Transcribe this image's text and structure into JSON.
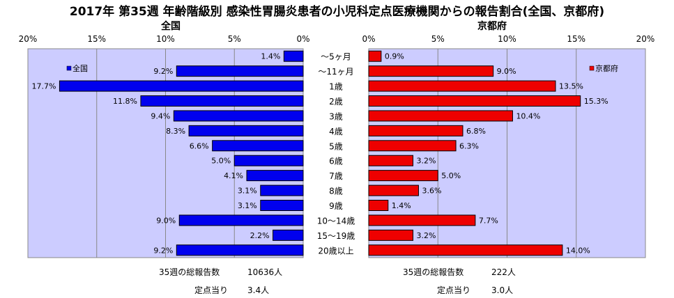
{
  "title": "2017年 第35週 年齢階級別 感染性胃腸炎患者の小児科定点医療機関からの報告割合(全国、京都府)",
  "colors": {
    "national": "#0000ee",
    "kyoto": "#ee0000",
    "plot_bg": "#ccccff"
  },
  "chart_data": [
    {
      "type": "bar",
      "orientation": "horizontal",
      "direction": "right-to-left",
      "title": "全国",
      "legend": {
        "label": "全国",
        "placement": "top-left"
      },
      "categories": [
        "～5ヶ月",
        "～11ヶ月",
        "1歳",
        "2歳",
        "3歳",
        "4歳",
        "5歳",
        "6歳",
        "7歳",
        "8歳",
        "9歳",
        "10～14歳",
        "15～19歳",
        "20歳以上"
      ],
      "values": [
        1.4,
        9.2,
        17.7,
        11.8,
        9.4,
        8.3,
        6.6,
        5.0,
        4.1,
        3.1,
        3.1,
        9.0,
        2.2,
        9.2
      ],
      "value_labels": [
        "1.4%",
        "9.2%",
        "17.7%",
        "11.8%",
        "9.4%",
        "8.3%",
        "6.6%",
        "5.0%",
        "4.1%",
        "3.1%",
        "3.1%",
        "9.0%",
        "2.2%",
        "9.2%"
      ],
      "xlim": [
        0,
        20
      ],
      "ticks": [
        "20%",
        "15%",
        "10%",
        "5%",
        "0%"
      ],
      "grid": true
    },
    {
      "type": "bar",
      "orientation": "horizontal",
      "direction": "left-to-right",
      "title": "京都府",
      "legend": {
        "label": "京都府",
        "placement": "top-right"
      },
      "categories": [
        "～5ヶ月",
        "～11ヶ月",
        "1歳",
        "2歳",
        "3歳",
        "4歳",
        "5歳",
        "6歳",
        "7歳",
        "8歳",
        "9歳",
        "10～14歳",
        "15～19歳",
        "20歳以上"
      ],
      "values": [
        0.9,
        9.0,
        13.5,
        15.3,
        10.4,
        6.8,
        6.3,
        3.2,
        5.0,
        3.6,
        1.4,
        7.7,
        3.2,
        14.0
      ],
      "value_labels": [
        "0.9%",
        "9.0%",
        "13.5%",
        "15.3%",
        "10.4%",
        "6.8%",
        "6.3%",
        "3.2%",
        "5.0%",
        "3.6%",
        "1.4%",
        "7.7%",
        "3.2%",
        "14.0%"
      ],
      "xlim": [
        0,
        20
      ],
      "ticks": [
        "0%",
        "5%",
        "10%",
        "15%",
        "20%"
      ],
      "grid": true
    }
  ],
  "footer": {
    "national_total_label": "35週の総報告数",
    "national_total_value": "10636人",
    "national_per_label": "定点当り",
    "national_per_value": "3.4人",
    "kyoto_total_label": "35週の総報告数",
    "kyoto_total_value": "222人",
    "kyoto_per_label": "定点当り",
    "kyoto_per_value": "3.0人"
  }
}
